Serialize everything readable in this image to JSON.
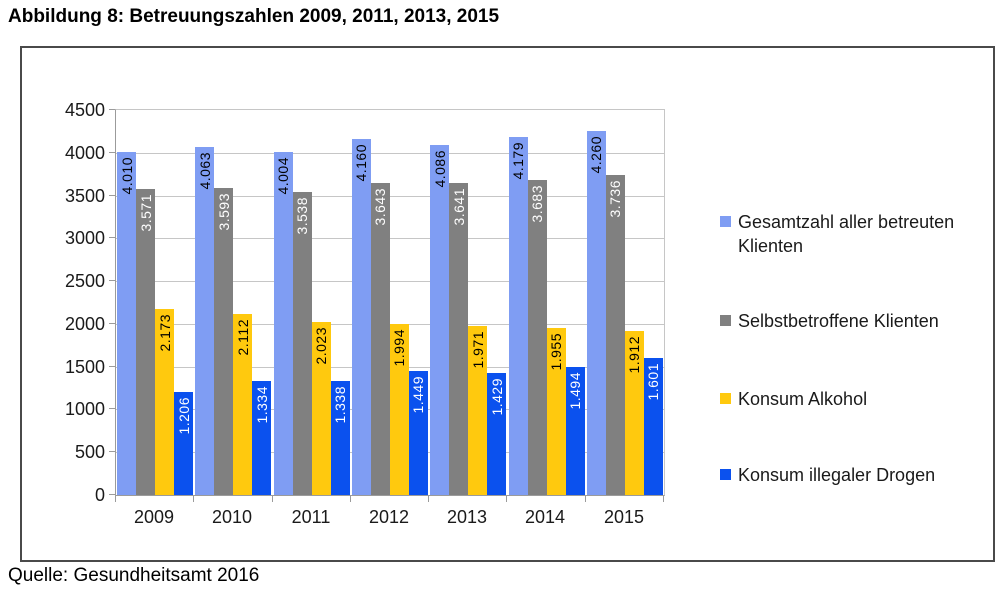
{
  "title": "Abbildung 8: Betreuungszahlen 2009, 2011, 2013, 2015",
  "source": "Quelle: Gesundheitsamt 2016",
  "chart_data": {
    "type": "bar",
    "title": "Abbildung 8: Betreuungszahlen 2009, 2011, 2013, 2015",
    "xlabel": "",
    "ylabel": "",
    "categories": [
      "2009",
      "2010",
      "2011",
      "2012",
      "2013",
      "2014",
      "2015"
    ],
    "series": [
      {
        "name": "Gesamtzahl aller betreuten Klienten",
        "color": "#7F9DF3",
        "label_color": "#000000",
        "values": [
          4010,
          4063,
          4004,
          4160,
          4086,
          4179,
          4260
        ],
        "value_labels": [
          "4.010",
          "4.063",
          "4.004",
          "4.160",
          "4.086",
          "4.179",
          "4.260"
        ]
      },
      {
        "name": "Selbstbetroffene Klienten",
        "color": "#808080",
        "label_color": "#ffffff",
        "values": [
          3571,
          3593,
          3538,
          3643,
          3641,
          3683,
          3736
        ],
        "value_labels": [
          "3.571",
          "3.593",
          "3.538",
          "3.643",
          "3.641",
          "3.683",
          "3.736"
        ]
      },
      {
        "name": "Konsum Alkohol",
        "color": "#FFC90E",
        "label_color": "#000000",
        "values": [
          2173,
          2112,
          2023,
          1994,
          1971,
          1955,
          1912
        ],
        "value_labels": [
          "2.173",
          "2.112",
          "2.023",
          "1.994",
          "1.971",
          "1.955",
          "1.912"
        ]
      },
      {
        "name": "Konsum illegaler Drogen",
        "color": "#0B51EE",
        "label_color": "#ffffff",
        "values": [
          1206,
          1334,
          1338,
          1449,
          1429,
          1494,
          1601
        ],
        "value_labels": [
          "1.206",
          "1.334",
          "1.338",
          "1.449",
          "1.429",
          "1.494",
          "1.601"
        ]
      }
    ],
    "ylim": [
      0,
      4500
    ],
    "yticks": [
      0,
      500,
      1000,
      1500,
      2000,
      2500,
      3000,
      3500,
      4000,
      4500
    ],
    "ytick_labels": [
      "0",
      "500",
      "1000",
      "1500",
      "2000",
      "2500",
      "3000",
      "3500",
      "4000",
      "4500"
    ],
    "grid": true,
    "legend_position": "right",
    "value_label_rotation": "vertical"
  }
}
